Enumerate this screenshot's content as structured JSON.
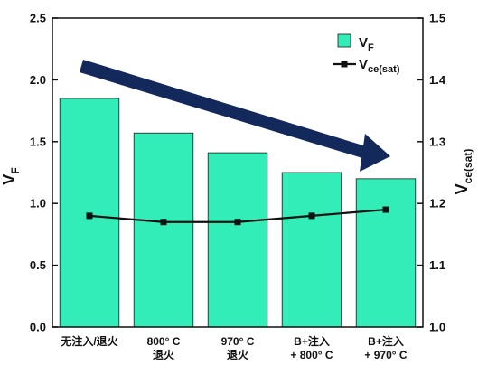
{
  "chart_data": {
    "type": "bar",
    "title": "",
    "categories": [
      [
        "无注入/退火"
      ],
      [
        "800° C",
        "退火"
      ],
      [
        "970° C",
        "退火"
      ],
      [
        "B+注入",
        "+ 800° C"
      ],
      [
        "B+注入",
        "+ 970° C"
      ]
    ],
    "series": [
      {
        "name": "V_F",
        "type": "bar",
        "axis": "left",
        "values": [
          1.85,
          1.57,
          1.41,
          1.25,
          1.2
        ],
        "color": "#33EDB8"
      },
      {
        "name": "V_ce(sat)",
        "type": "line",
        "axis": "right",
        "values": [
          1.18,
          1.17,
          1.17,
          1.18,
          1.19
        ],
        "color": "#111111"
      }
    ],
    "left_axis": {
      "label_main": "V",
      "label_sub": "F",
      "ylim": [
        0.0,
        2.5
      ],
      "ticks": [
        "0.0",
        "0.5",
        "1.0",
        "1.5",
        "2.0",
        "2.5"
      ]
    },
    "right_axis": {
      "label_main": "V",
      "label_sub": "ce(sat)",
      "ylim": [
        1.0,
        1.5
      ],
      "ticks": [
        "1.0",
        "1.1",
        "1.2",
        "1.3",
        "1.4",
        "1.5"
      ]
    },
    "legend": {
      "position": "top-right",
      "items": [
        {
          "main": "V",
          "sub": "F",
          "marker": "square"
        },
        {
          "main": "V",
          "sub": "ce(sat)",
          "marker": "line-square"
        }
      ]
    },
    "annotation": "downward trend arrow",
    "colors": {
      "bar": "#33EDB8",
      "bar_edge": "#1a1a1a",
      "arrow": "#13295C",
      "line": "#111111"
    }
  }
}
